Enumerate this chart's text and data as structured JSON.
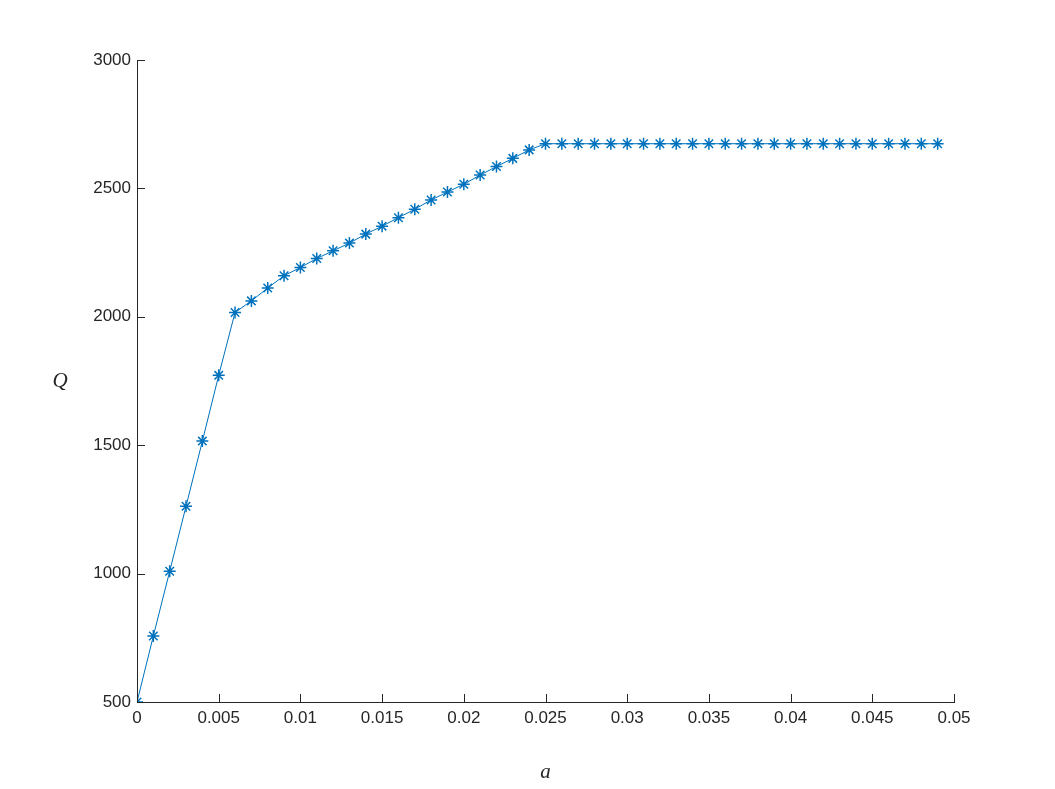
{
  "chart_data": {
    "type": "line",
    "xlabel": "a",
    "ylabel": "Q",
    "x": [
      0,
      0.001,
      0.002,
      0.003,
      0.004,
      0.005,
      0.006,
      0.007,
      0.008,
      0.009,
      0.01,
      0.011,
      0.012,
      0.013,
      0.014,
      0.015,
      0.016,
      0.017,
      0.018,
      0.019,
      0.02,
      0.021,
      0.022,
      0.023,
      0.024,
      0.025,
      0.026,
      0.027,
      0.028,
      0.029,
      0.03,
      0.031,
      0.032,
      0.033,
      0.034,
      0.035,
      0.036,
      0.037,
      0.038,
      0.039,
      0.04,
      0.041,
      0.042,
      0.043,
      0.044,
      0.045,
      0.046,
      0.047,
      0.048,
      0.049
    ],
    "series": [
      {
        "color": "#0072bd",
        "values": [
          500,
          757,
          1009,
          1262,
          1516,
          1772,
          2017,
          2062,
          2112,
          2160,
          2192,
          2227,
          2257,
          2287,
          2322,
          2353,
          2386,
          2419,
          2455,
          2486,
          2516,
          2552,
          2585,
          2617,
          2650,
          2674,
          2674,
          2674,
          2674,
          2674,
          2674,
          2674,
          2674,
          2674,
          2674,
          2674,
          2674,
          2674,
          2674,
          2674,
          2674,
          2674,
          2674,
          2674,
          2674,
          2674,
          2674,
          2674,
          2674,
          2674
        ]
      }
    ],
    "xlim": [
      0,
      0.05
    ],
    "xticks": [
      0,
      0.005,
      0.01,
      0.015,
      0.02,
      0.025,
      0.03,
      0.035,
      0.04,
      0.045,
      0.05
    ],
    "ylim": [
      500,
      3000
    ],
    "yticks": [
      500,
      1000,
      1500,
      2000,
      2500,
      3000
    ],
    "marker": "cross",
    "line_style": "solid"
  }
}
